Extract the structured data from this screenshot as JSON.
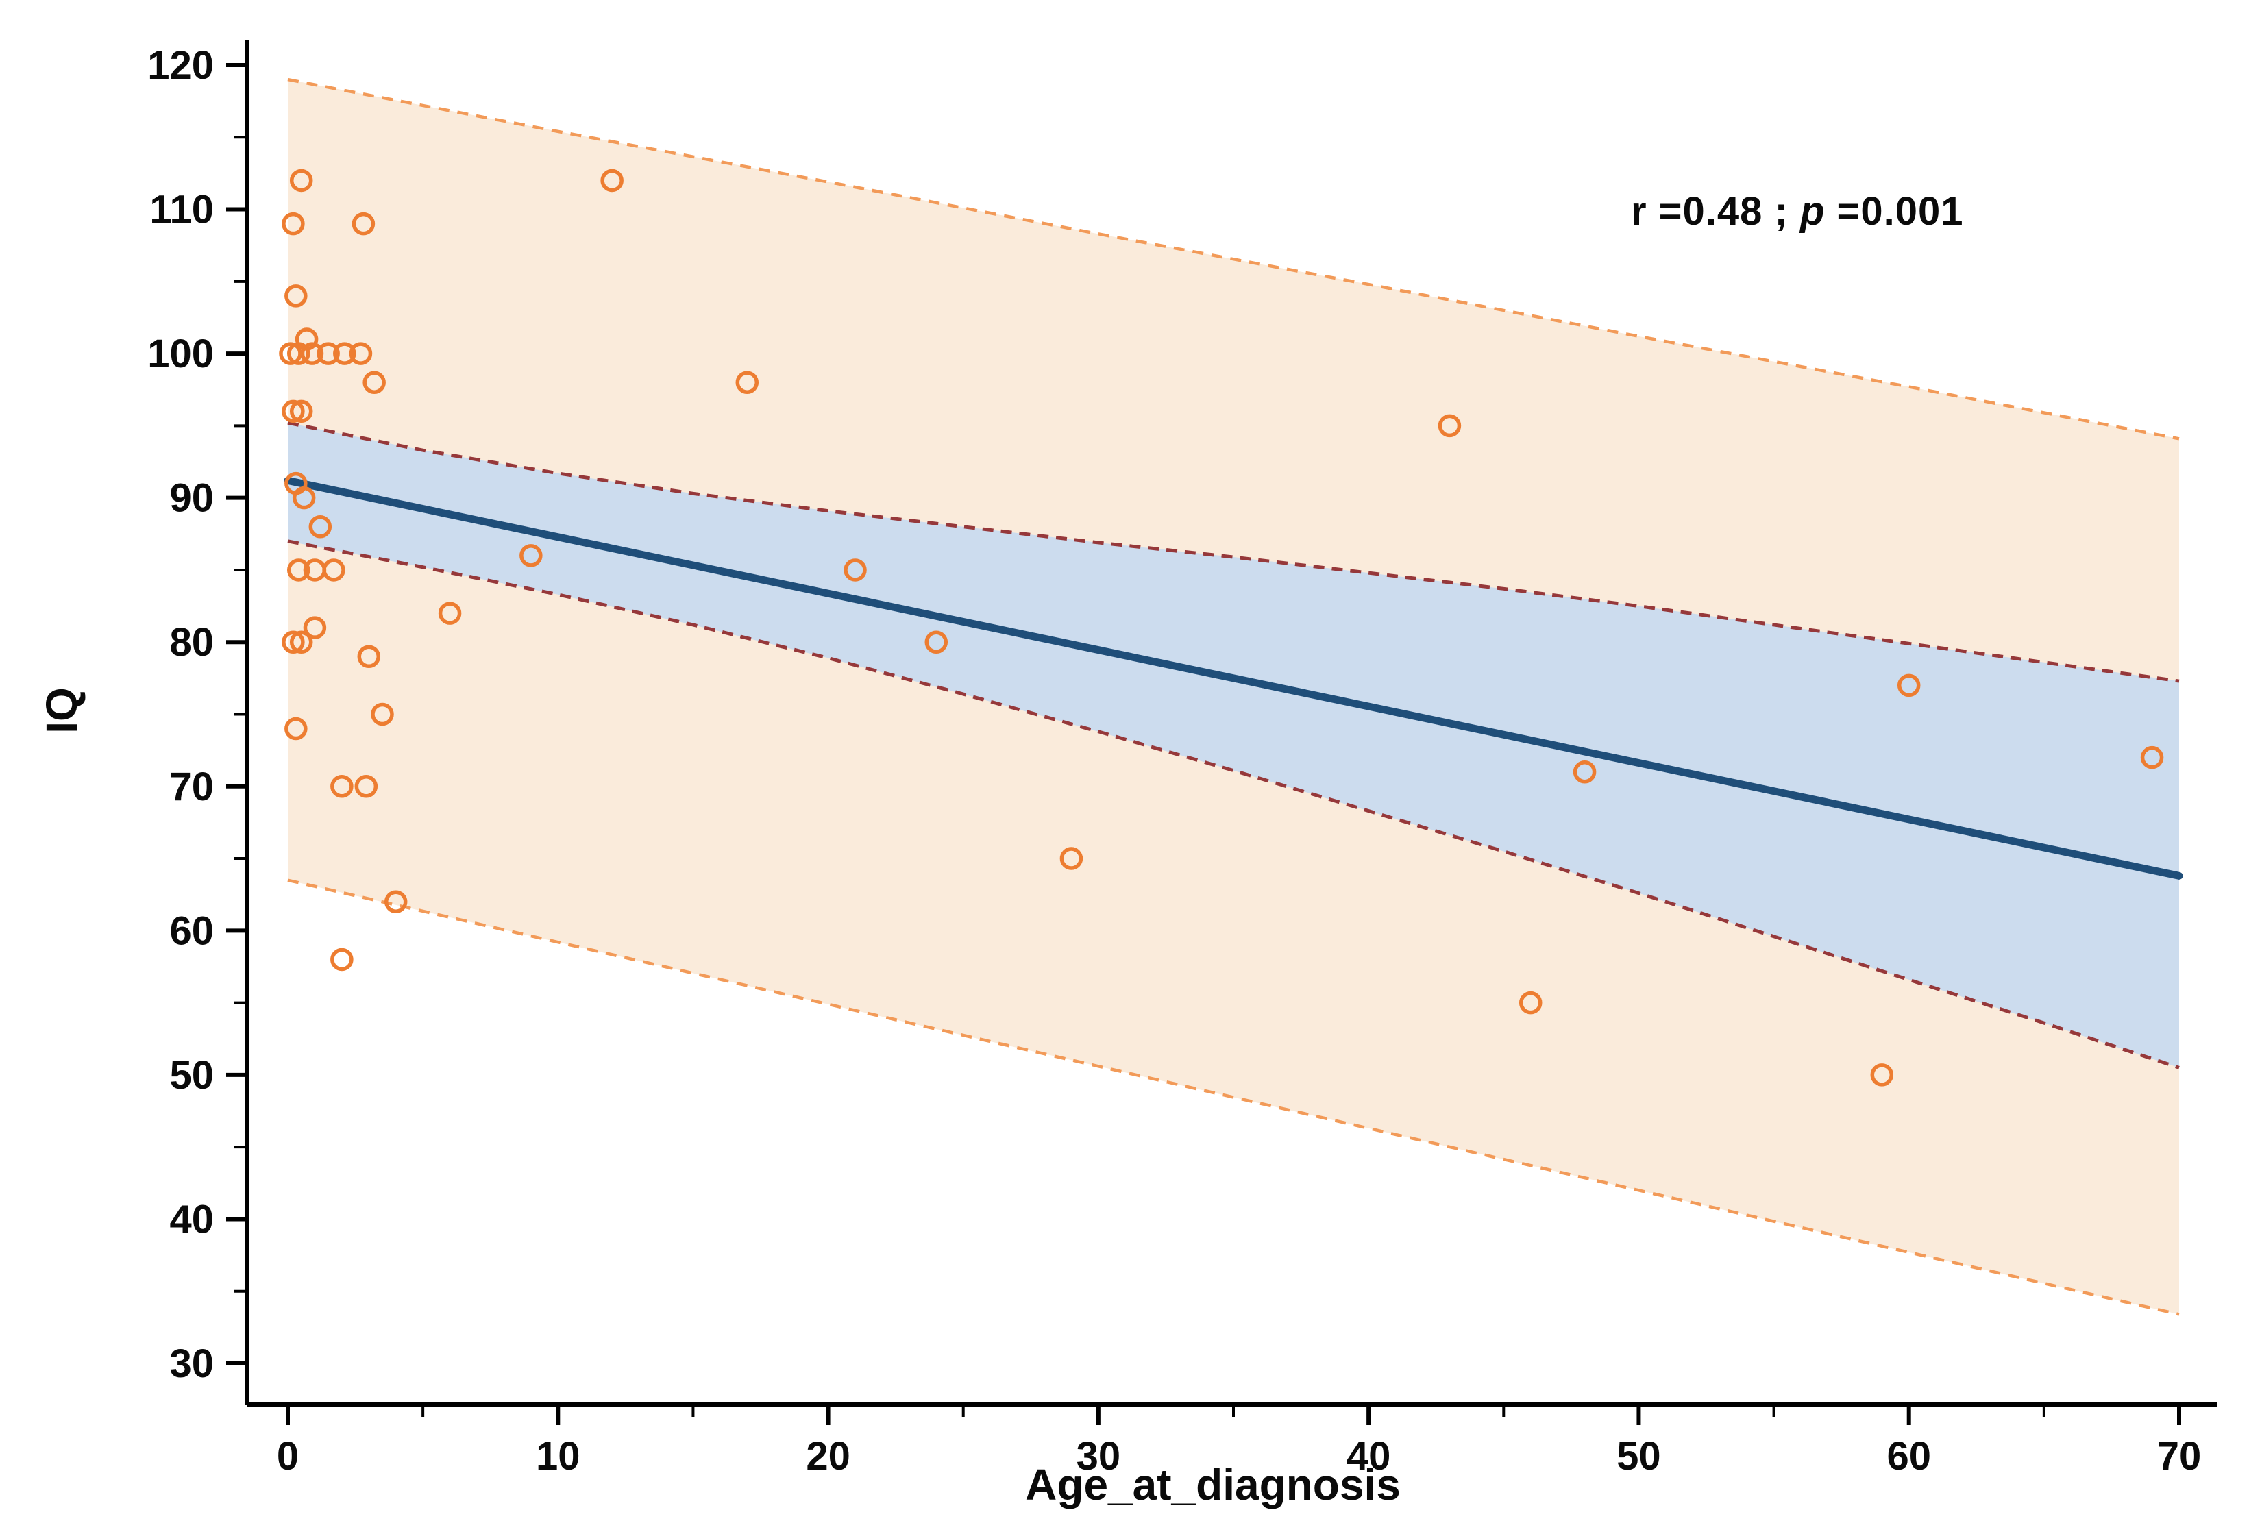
{
  "annotation": {
    "part1": "r =0.48 ; ",
    "p_symbol": "p",
    "part2": " =0.001"
  },
  "chart_data": {
    "type": "scatter",
    "title": "",
    "xlabel": "Age_at_diagnosis",
    "ylabel": "IQ",
    "xlim": [
      0,
      70
    ],
    "ylim": [
      30,
      120
    ],
    "x_ticks": [
      0,
      10,
      20,
      30,
      40,
      50,
      60,
      70
    ],
    "y_ticks": [
      30,
      40,
      50,
      60,
      70,
      80,
      90,
      100,
      110,
      120
    ],
    "grid": false,
    "legend_position": "none",
    "stats_label": "r =0.48 ; p =0.001",
    "points": [
      [
        0.2,
        109
      ],
      [
        0.5,
        112
      ],
      [
        2.8,
        109
      ],
      [
        0.3,
        104
      ],
      [
        0.1,
        100
      ],
      [
        0.4,
        100
      ],
      [
        0.7,
        101
      ],
      [
        0.9,
        100
      ],
      [
        1.5,
        100
      ],
      [
        2.1,
        100
      ],
      [
        2.7,
        100
      ],
      [
        3.2,
        98
      ],
      [
        0.2,
        96
      ],
      [
        0.5,
        96
      ],
      [
        0.3,
        91
      ],
      [
        0.6,
        90
      ],
      [
        1.2,
        88
      ],
      [
        0.4,
        85
      ],
      [
        1.0,
        85
      ],
      [
        1.7,
        85
      ],
      [
        0.2,
        80
      ],
      [
        0.5,
        80
      ],
      [
        1.0,
        81
      ],
      [
        3.0,
        79
      ],
      [
        3.5,
        75
      ],
      [
        0.3,
        74
      ],
      [
        2.0,
        70
      ],
      [
        2.9,
        70
      ],
      [
        4.0,
        62
      ],
      [
        2.0,
        58
      ],
      [
        6,
        82
      ],
      [
        9,
        86
      ],
      [
        12,
        112
      ],
      [
        17,
        98
      ],
      [
        21,
        85
      ],
      [
        24,
        80
      ],
      [
        29,
        65
      ],
      [
        43,
        95
      ],
      [
        46,
        55
      ],
      [
        48,
        71
      ],
      [
        59,
        50
      ],
      [
        60,
        77
      ],
      [
        69,
        72
      ]
    ],
    "regression_line": {
      "x": [
        0,
        70
      ],
      "y": [
        91.2,
        63.8
      ]
    },
    "confidence_band": {
      "x": [
        0,
        5,
        10,
        15,
        20,
        25,
        30,
        35,
        40,
        45,
        50,
        55,
        60,
        65,
        70
      ],
      "upper": [
        95.2,
        93.3,
        91.7,
        90.3,
        89.1,
        88.0,
        86.9,
        85.9,
        84.8,
        83.7,
        82.5,
        81.2,
        79.9,
        78.6,
        77.3
      ],
      "lower": [
        87.0,
        85.2,
        83.3,
        81.2,
        78.9,
        76.4,
        73.8,
        71.1,
        68.3,
        65.5,
        62.6,
        59.6,
        56.6,
        53.6,
        50.5
      ]
    },
    "prediction_band": {
      "x": [
        0,
        10,
        20,
        30,
        40,
        50,
        60,
        70
      ],
      "upper": [
        119.0,
        115.4,
        111.9,
        108.3,
        104.8,
        101.2,
        97.7,
        94.1
      ],
      "lower": [
        63.5,
        59.2,
        54.9,
        50.6,
        46.3,
        42.0,
        37.7,
        33.4
      ]
    },
    "colors": {
      "point_stroke": "#ED7D31",
      "regression": "#1F4E79",
      "ci_fill": "#CCDCEE",
      "ci_border": "#96383A",
      "pi_fill": "#FAEBDB",
      "pi_border": "#F29A58",
      "axis": "#000000",
      "text": "#0a0a0a"
    }
  }
}
